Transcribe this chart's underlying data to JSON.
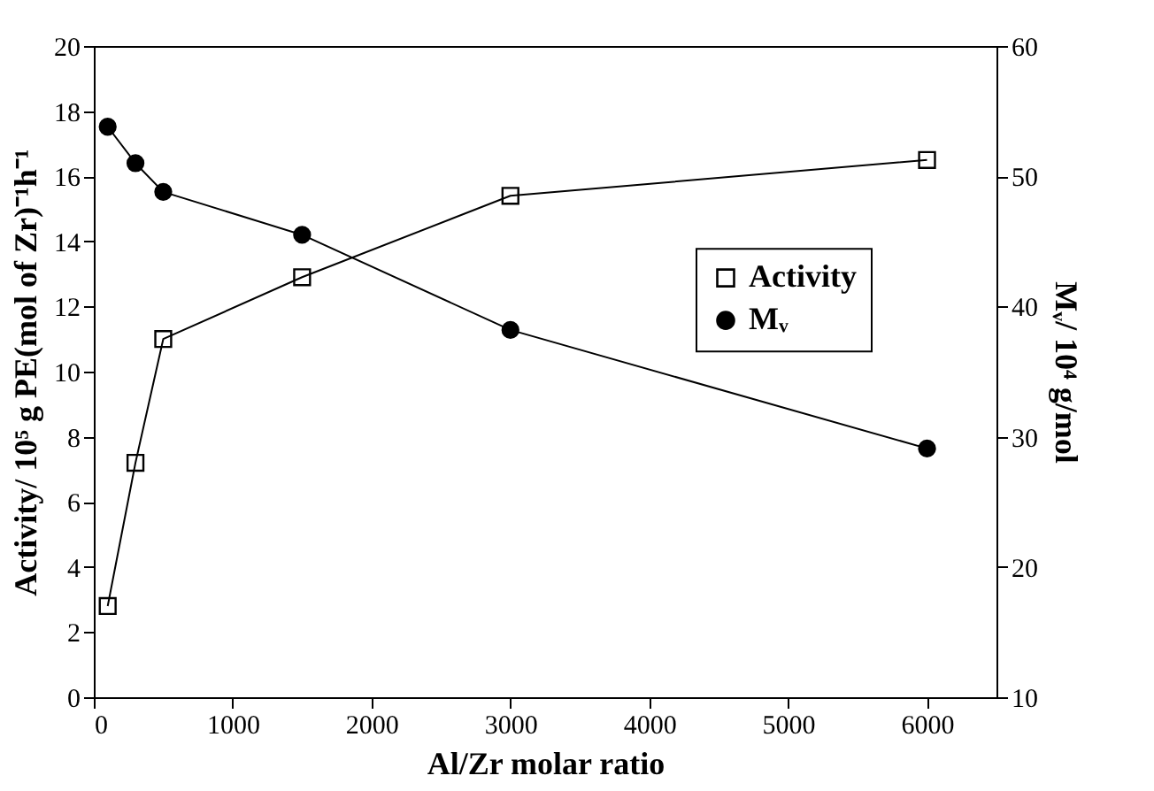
{
  "chart_data": {
    "type": "line",
    "xlabel": "Al/Zr molar ratio",
    "ylabel": "Activity/ 10⁵ g PE(mol of Zr)⁻¹h⁻¹",
    "y2label": "Mᵥ/ 10⁴ g/mol",
    "x": [
      100,
      300,
      500,
      1500,
      3000,
      6000
    ],
    "series": [
      {
        "name": "Activity",
        "color": "#000000",
        "marker": "square",
        "values": [
          2.8,
          7.2,
          11.0,
          12.9,
          15.4,
          16.5
        ]
      },
      {
        "name": "Mᵥ",
        "color": "#000000",
        "marker": "circle",
        "axis": "y2",
        "values": [
          53.8,
          51.0,
          48.8,
          45.5,
          38.2,
          29.1
        ]
      }
    ],
    "xlim": [
      0,
      6500
    ],
    "xticks": [
      0,
      1000,
      2000,
      3000,
      4000,
      5000,
      6000
    ],
    "ylim": [
      0,
      20
    ],
    "yticks": [
      0,
      2,
      4,
      6,
      8,
      10,
      12,
      14,
      16,
      18,
      20
    ],
    "y2lim": [
      10,
      60
    ],
    "y2ticks": [
      10,
      20,
      30,
      40,
      50,
      60
    ],
    "legend": "right",
    "grid": false,
    "line_style": "solid"
  }
}
